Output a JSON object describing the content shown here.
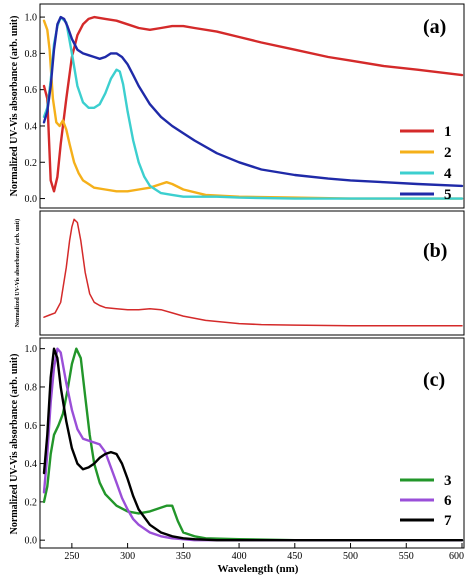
{
  "chart_data": [
    {
      "panel": "(a)",
      "type": "line",
      "ylabel": "Normalized UV-Vis absorbance (arb. unit)",
      "xlim": [
        225,
        600
      ],
      "ylim": [
        -0.03,
        1.05
      ],
      "yticks": [
        "0.0",
        "0.2",
        "0.4",
        "0.6",
        "0.8",
        "1.0"
      ],
      "legend_position": "right",
      "series": [
        {
          "name": "1",
          "color": "#d42a2a",
          "x": [
            225,
            228,
            231,
            234,
            237,
            240,
            245,
            250,
            255,
            260,
            265,
            270,
            280,
            290,
            300,
            310,
            320,
            330,
            340,
            350,
            360,
            380,
            400,
            420,
            450,
            480,
            500,
            530,
            560,
            600
          ],
          "y": [
            0.62,
            0.55,
            0.1,
            0.04,
            0.12,
            0.3,
            0.55,
            0.78,
            0.9,
            0.96,
            0.99,
            1.0,
            0.99,
            0.98,
            0.96,
            0.94,
            0.93,
            0.94,
            0.95,
            0.95,
            0.94,
            0.92,
            0.89,
            0.86,
            0.82,
            0.78,
            0.76,
            0.73,
            0.71,
            0.68
          ]
        },
        {
          "name": "2",
          "color": "#f5b01a",
          "x": [
            225,
            228,
            230,
            233,
            236,
            239,
            242,
            245,
            248,
            252,
            256,
            260,
            265,
            270,
            280,
            290,
            300,
            310,
            320,
            330,
            335,
            340,
            350,
            370,
            400,
            450,
            500,
            550,
            600
          ],
          "y": [
            0.98,
            0.93,
            0.82,
            0.55,
            0.42,
            0.4,
            0.43,
            0.38,
            0.3,
            0.2,
            0.14,
            0.1,
            0.08,
            0.06,
            0.05,
            0.04,
            0.04,
            0.05,
            0.06,
            0.08,
            0.09,
            0.08,
            0.05,
            0.02,
            0.01,
            0.005,
            0.0,
            0.0,
            0.0
          ]
        },
        {
          "name": "4",
          "color": "#3ccfcf",
          "x": [
            225,
            228,
            231,
            234,
            237,
            240,
            245,
            250,
            255,
            260,
            265,
            270,
            275,
            280,
            285,
            290,
            293,
            296,
            300,
            305,
            310,
            315,
            320,
            330,
            340,
            350,
            360,
            380,
            400,
            450,
            500,
            550,
            600
          ],
          "y": [
            0.45,
            0.5,
            0.65,
            0.85,
            0.95,
            1.0,
            0.97,
            0.8,
            0.62,
            0.53,
            0.5,
            0.5,
            0.52,
            0.58,
            0.66,
            0.71,
            0.7,
            0.63,
            0.48,
            0.32,
            0.2,
            0.12,
            0.07,
            0.03,
            0.02,
            0.01,
            0.01,
            0.01,
            0.005,
            0.0,
            0.0,
            0.0,
            0.0
          ]
        },
        {
          "name": "5",
          "color": "#1f2aa8",
          "x": [
            225,
            228,
            231,
            234,
            237,
            240,
            243,
            246,
            250,
            255,
            260,
            265,
            270,
            275,
            280,
            285,
            290,
            295,
            300,
            305,
            310,
            320,
            330,
            340,
            350,
            360,
            380,
            400,
            420,
            450,
            480,
            500,
            530,
            560,
            600
          ],
          "y": [
            0.42,
            0.48,
            0.62,
            0.82,
            0.96,
            1.0,
            0.99,
            0.95,
            0.88,
            0.82,
            0.8,
            0.79,
            0.78,
            0.77,
            0.78,
            0.8,
            0.8,
            0.78,
            0.74,
            0.68,
            0.62,
            0.52,
            0.45,
            0.4,
            0.36,
            0.32,
            0.25,
            0.2,
            0.16,
            0.13,
            0.11,
            0.1,
            0.09,
            0.08,
            0.07
          ]
        }
      ]
    },
    {
      "panel": "(b)",
      "type": "line",
      "ylabel": "Normalized UV-Vis absorbance (arb. unit)",
      "xlim": [
        225,
        600
      ],
      "ylim": [
        -0.05,
        1.05
      ],
      "yticks": [],
      "series": [
        {
          "name": "",
          "color": "#d42a2a",
          "x": [
            225,
            230,
            235,
            240,
            245,
            248,
            250,
            252,
            255,
            258,
            262,
            266,
            270,
            275,
            280,
            290,
            300,
            310,
            320,
            330,
            340,
            350,
            370,
            400,
            420,
            450,
            500,
            550,
            600
          ],
          "y": [
            0.08,
            0.1,
            0.12,
            0.22,
            0.55,
            0.8,
            0.93,
            1.0,
            0.97,
            0.8,
            0.5,
            0.3,
            0.22,
            0.19,
            0.17,
            0.16,
            0.15,
            0.15,
            0.16,
            0.15,
            0.12,
            0.09,
            0.05,
            0.02,
            0.01,
            0.005,
            0.0,
            0.0,
            0.0
          ]
        }
      ]
    },
    {
      "panel": "(c)",
      "type": "line",
      "xlabel": "Wavelength (nm)",
      "ylabel": "Normalized UV-Vis absorbance (arb. unit)",
      "xlim": [
        225,
        600
      ],
      "ylim": [
        -0.02,
        1.04
      ],
      "xticks": [
        "250",
        "300",
        "350",
        "400",
        "450",
        "500",
        "550",
        "600"
      ],
      "yticks": [
        "0.0",
        "0.2",
        "0.4",
        "0.6",
        "0.8",
        "1.0"
      ],
      "legend_position": "bottom-right",
      "series": [
        {
          "name": "3",
          "color": "#22962a",
          "x": [
            225,
            228,
            231,
            234,
            238,
            242,
            246,
            250,
            254,
            258,
            262,
            266,
            270,
            275,
            280,
            290,
            300,
            310,
            320,
            330,
            335,
            340,
            345,
            350,
            360,
            370,
            400,
            450,
            500,
            550,
            600
          ],
          "y": [
            0.2,
            0.28,
            0.45,
            0.55,
            0.6,
            0.66,
            0.78,
            0.92,
            1.0,
            0.95,
            0.75,
            0.55,
            0.4,
            0.3,
            0.24,
            0.18,
            0.15,
            0.14,
            0.15,
            0.17,
            0.18,
            0.18,
            0.1,
            0.04,
            0.02,
            0.01,
            0.005,
            0.0,
            0.0,
            0.0,
            0.0
          ]
        },
        {
          "name": "6",
          "color": "#9a4fd8",
          "x": [
            225,
            228,
            231,
            234,
            237,
            240,
            245,
            250,
            255,
            260,
            265,
            270,
            275,
            280,
            285,
            290,
            295,
            300,
            305,
            310,
            320,
            330,
            340,
            350,
            360,
            380,
            400,
            450,
            500,
            550,
            600
          ],
          "y": [
            0.25,
            0.45,
            0.72,
            0.9,
            1.0,
            0.98,
            0.82,
            0.68,
            0.58,
            0.53,
            0.52,
            0.51,
            0.5,
            0.46,
            0.38,
            0.3,
            0.22,
            0.16,
            0.11,
            0.08,
            0.04,
            0.02,
            0.01,
            0.005,
            0.0,
            0.0,
            0.0,
            0.0,
            0.0,
            0.0,
            0.0
          ]
        },
        {
          "name": "7",
          "color": "#000000",
          "x": [
            225,
            228,
            231,
            234,
            237,
            240,
            245,
            250,
            255,
            260,
            265,
            270,
            275,
            280,
            285,
            290,
            295,
            300,
            305,
            310,
            320,
            330,
            340,
            350,
            360,
            380,
            400,
            450,
            500,
            550,
            600
          ],
          "y": [
            0.35,
            0.55,
            0.85,
            1.0,
            0.95,
            0.8,
            0.62,
            0.48,
            0.4,
            0.37,
            0.38,
            0.4,
            0.43,
            0.45,
            0.46,
            0.45,
            0.4,
            0.32,
            0.23,
            0.16,
            0.08,
            0.04,
            0.02,
            0.01,
            0.005,
            0.0,
            0.0,
            0.0,
            0.0,
            0.0,
            0.0
          ]
        }
      ]
    }
  ]
}
